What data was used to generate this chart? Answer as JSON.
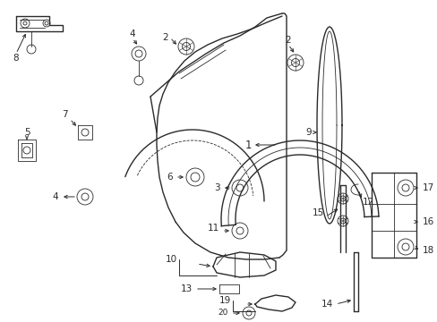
{
  "background_color": "#ffffff",
  "line_color": "#2a2a2a",
  "label_color": "#000000",
  "figsize": [
    4.89,
    3.6
  ],
  "dpi": 100,
  "lw_main": 1.0,
  "lw_thin": 0.6,
  "label_fontsize": 7.5
}
